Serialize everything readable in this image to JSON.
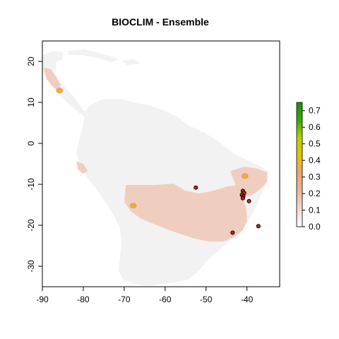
{
  "title": "BIOCLIM - Ensemble",
  "colors": {
    "background_land": "#f2f2f2",
    "low_suitability": "#f0c8b6",
    "mid_suitability": "#e8a070",
    "high_suitability": "#e6c000",
    "occurrence_point": "#c8231b",
    "legend_gradient": [
      "#ffffff",
      "#f2d8cc",
      "#ecb79a",
      "#e9a46a",
      "#e9c000",
      "#b6d200",
      "#36a800",
      "#1e8f00"
    ]
  },
  "chart_data": {
    "type": "raster-map",
    "title": "BIOCLIM - Ensemble",
    "xlabel": "",
    "ylabel": "",
    "xlim": [
      -90,
      -32
    ],
    "ylim": [
      -35,
      25
    ],
    "x_ticks": [
      -90,
      -80,
      -70,
      -60,
      -50,
      -40
    ],
    "y_ticks": [
      20,
      10,
      0,
      -10,
      -20,
      -30
    ],
    "x_tick_labels": [
      "-90",
      "-80",
      "-70",
      "-60",
      "-50",
      "-40"
    ],
    "y_tick_labels": [
      "20",
      "10",
      "0",
      "-10",
      "-20",
      "-30"
    ],
    "legend": {
      "title": "",
      "range": [
        0.0,
        0.75
      ],
      "ticks": [
        0.0,
        0.1,
        0.2,
        0.3,
        0.4,
        0.5,
        0.6,
        0.7
      ],
      "tick_labels": [
        "0.0",
        "0.1",
        "0.2",
        "0.3",
        "0.4",
        "0.5",
        "0.6",
        "0.7"
      ],
      "placement": "right"
    },
    "occurrence_points": [
      {
        "lon": -52.5,
        "lat": -10.8
      },
      {
        "lon": -41.0,
        "lat": -11.6
      },
      {
        "lon": -40.7,
        "lat": -12.1
      },
      {
        "lon": -41.2,
        "lat": -12.6
      },
      {
        "lon": -40.9,
        "lat": -13.0
      },
      {
        "lon": -41.0,
        "lat": -13.4
      },
      {
        "lon": -39.5,
        "lat": -14.1
      },
      {
        "lon": -37.2,
        "lat": -20.2
      },
      {
        "lon": -43.5,
        "lat": -21.8
      }
    ],
    "suitability_patches": [
      {
        "lon": -85.8,
        "lat": 12.9,
        "value": 0.35
      },
      {
        "lon": -67.8,
        "lat": -15.2,
        "value": 0.3
      },
      {
        "lon": -41.0,
        "lat": -12.5,
        "value": 0.35
      },
      {
        "lon": -40.5,
        "lat": -8.0,
        "value": 0.3
      }
    ]
  }
}
